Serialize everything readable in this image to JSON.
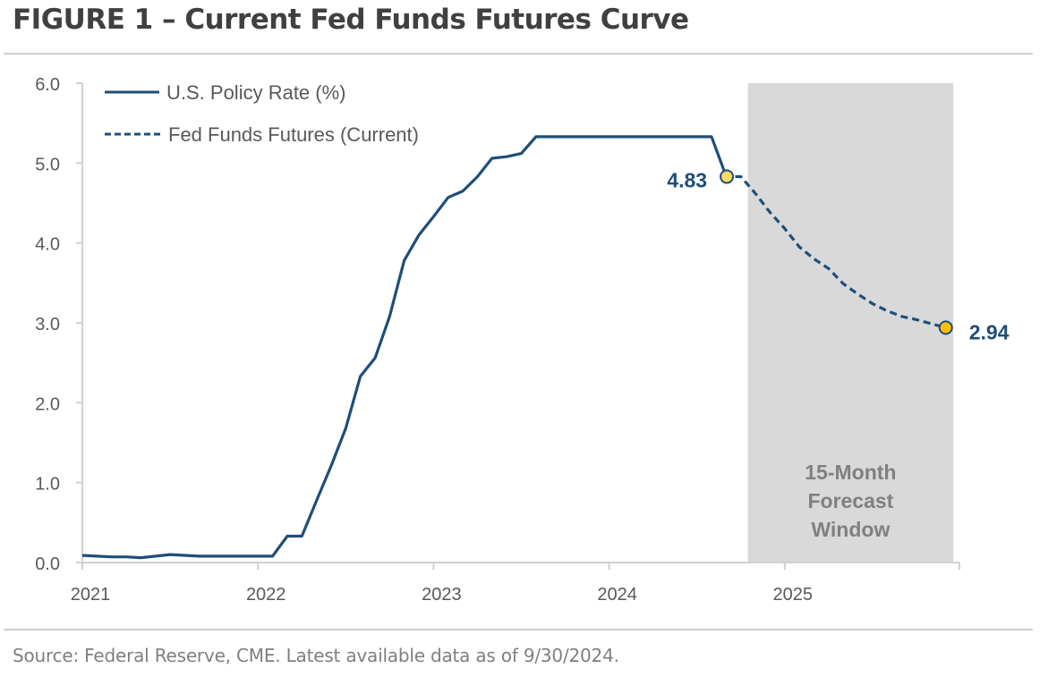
{
  "header": {
    "title": "FIGURE 1 – Current Fed Funds Futures Curve"
  },
  "footer": {
    "source": "Source: Federal Reserve, CME. Latest available data as of 9/30/2024."
  },
  "colors": {
    "series": "#1f4e79",
    "marker_start": "#ffd966",
    "marker_end": "#ffc000",
    "shade": "#d9d9d9",
    "axis": "#d0d0d0"
  },
  "chart_data": {
    "type": "line",
    "title": "FIGURE 1 – Current Fed Funds Futures Curve",
    "xlabel": "",
    "ylabel": "",
    "ylim": [
      0,
      6
    ],
    "yticks": [
      "0.0",
      "1.0",
      "2.0",
      "3.0",
      "4.0",
      "5.0",
      "6.0"
    ],
    "xlim": [
      2021.0,
      2026.0
    ],
    "xticks": [
      "2021",
      "2022",
      "2023",
      "2024",
      "2025"
    ],
    "grid": false,
    "legend": {
      "placement": "top-left",
      "entries": [
        "U.S. Policy Rate (%)",
        "Fed Funds Futures (Current)"
      ]
    },
    "shaded_region": {
      "label": [
        "15-Month",
        "Forecast",
        "Window"
      ],
      "x_start": 2024.79,
      "x_end": 2025.96
    },
    "annotations": [
      {
        "text": "4.83",
        "x": 2024.67,
        "y": 4.83
      },
      {
        "text": "2.94",
        "x": 2025.92,
        "y": 2.94
      }
    ],
    "series": [
      {
        "name": "U.S. Policy Rate (%)",
        "style": "solid",
        "x": [
          2021.0,
          2021.083,
          2021.167,
          2021.25,
          2021.333,
          2021.417,
          2021.5,
          2021.583,
          2021.667,
          2021.75,
          2021.833,
          2021.917,
          2022.0,
          2022.083,
          2022.167,
          2022.25,
          2022.333,
          2022.417,
          2022.5,
          2022.583,
          2022.667,
          2022.75,
          2022.833,
          2022.917,
          2023.0,
          2023.083,
          2023.167,
          2023.25,
          2023.333,
          2023.417,
          2023.5,
          2023.583,
          2023.667,
          2023.75,
          2023.833,
          2023.917,
          2024.0,
          2024.083,
          2024.167,
          2024.25,
          2024.333,
          2024.417,
          2024.5,
          2024.583,
          2024.667
        ],
        "values": [
          0.09,
          0.08,
          0.07,
          0.07,
          0.06,
          0.08,
          0.1,
          0.09,
          0.08,
          0.08,
          0.08,
          0.08,
          0.08,
          0.08,
          0.33,
          0.33,
          0.77,
          1.21,
          1.68,
          2.33,
          2.56,
          3.08,
          3.78,
          4.1,
          4.33,
          4.57,
          4.65,
          4.83,
          5.06,
          5.08,
          5.12,
          5.33,
          5.33,
          5.33,
          5.33,
          5.33,
          5.33,
          5.33,
          5.33,
          5.33,
          5.33,
          5.33,
          5.33,
          5.33,
          4.83
        ]
      },
      {
        "name": "Fed Funds Futures (Current)",
        "style": "dashed",
        "x": [
          2024.667,
          2024.75,
          2024.833,
          2024.917,
          2025.0,
          2025.083,
          2025.167,
          2025.25,
          2025.333,
          2025.417,
          2025.5,
          2025.583,
          2025.667,
          2025.75,
          2025.833,
          2025.917
        ],
        "values": [
          4.83,
          4.83,
          4.62,
          4.38,
          4.18,
          3.95,
          3.8,
          3.68,
          3.49,
          3.36,
          3.24,
          3.15,
          3.08,
          3.04,
          2.99,
          2.94
        ]
      }
    ]
  }
}
